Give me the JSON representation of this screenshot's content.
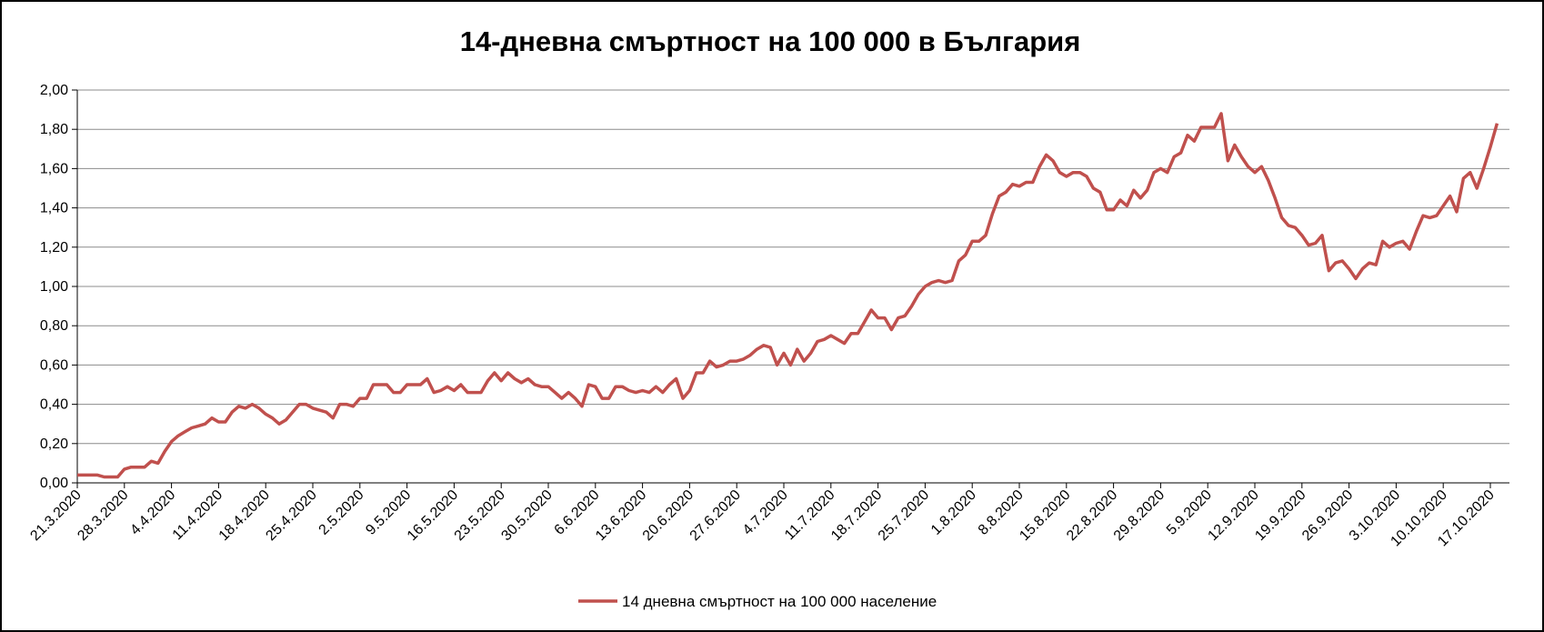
{
  "chart_data": {
    "type": "line",
    "title": "14-дневна смъртност на 100 000 в България",
    "xlabel": "",
    "ylabel": "",
    "ylim": [
      0,
      2
    ],
    "yticks": [
      "0,00",
      "0,20",
      "0,40",
      "0,60",
      "0,80",
      "1,00",
      "1,20",
      "1,40",
      "1,60",
      "1,80",
      "2,00"
    ],
    "ytick_values": [
      0,
      0.2,
      0.4,
      0.6,
      0.8,
      1.0,
      1.2,
      1.4,
      1.6,
      1.8,
      2.0
    ],
    "x_tick_labels": [
      "21.3.2020",
      "28.3.2020",
      "4.4.2020",
      "11.4.2020",
      "18.4.2020",
      "25.4.2020",
      "2.5.2020",
      "9.5.2020",
      "16.5.2020",
      "23.5.2020",
      "30.5.2020",
      "6.6.2020",
      "13.6.2020",
      "20.6.2020",
      "27.6.2020",
      "4.7.2020",
      "11.7.2020",
      "18.7.2020",
      "25.7.2020",
      "1.8.2020",
      "8.8.2020",
      "15.8.2020",
      "22.8.2020",
      "29.8.2020",
      "5.9.2020",
      "12.9.2020",
      "19.9.2020",
      "26.9.2020",
      "3.10.2020",
      "10.10.2020",
      "17.10.2020"
    ],
    "grid": true,
    "legend_position": "bottom",
    "series": [
      {
        "name": "14 дневна смъртност на 100 000 население",
        "color": "#c0504d",
        "x_start": "21.3.2020",
        "values": [
          0.04,
          0.04,
          0.04,
          0.04,
          0.03,
          0.03,
          0.03,
          0.07,
          0.08,
          0.08,
          0.08,
          0.11,
          0.1,
          0.16,
          0.21,
          0.24,
          0.26,
          0.28,
          0.29,
          0.3,
          0.33,
          0.31,
          0.31,
          0.36,
          0.39,
          0.38,
          0.4,
          0.38,
          0.35,
          0.33,
          0.3,
          0.32,
          0.36,
          0.4,
          0.4,
          0.38,
          0.37,
          0.36,
          0.33,
          0.4,
          0.4,
          0.39,
          0.43,
          0.43,
          0.5,
          0.5,
          0.5,
          0.46,
          0.46,
          0.5,
          0.5,
          0.5,
          0.53,
          0.46,
          0.47,
          0.49,
          0.47,
          0.5,
          0.46,
          0.46,
          0.46,
          0.52,
          0.56,
          0.52,
          0.56,
          0.53,
          0.51,
          0.53,
          0.5,
          0.49,
          0.49,
          0.46,
          0.43,
          0.46,
          0.43,
          0.39,
          0.5,
          0.49,
          0.43,
          0.43,
          0.49,
          0.49,
          0.47,
          0.46,
          0.47,
          0.46,
          0.49,
          0.46,
          0.5,
          0.53,
          0.43,
          0.47,
          0.56,
          0.56,
          0.62,
          0.59,
          0.6,
          0.62,
          0.62,
          0.63,
          0.65,
          0.68,
          0.7,
          0.69,
          0.6,
          0.66,
          0.6,
          0.68,
          0.62,
          0.66,
          0.72,
          0.73,
          0.75,
          0.73,
          0.71,
          0.76,
          0.76,
          0.82,
          0.88,
          0.84,
          0.84,
          0.78,
          0.84,
          0.85,
          0.9,
          0.96,
          1.0,
          1.02,
          1.03,
          1.02,
          1.03,
          1.13,
          1.16,
          1.23,
          1.23,
          1.26,
          1.37,
          1.46,
          1.48,
          1.52,
          1.51,
          1.53,
          1.53,
          1.61,
          1.67,
          1.64,
          1.58,
          1.56,
          1.58,
          1.58,
          1.56,
          1.5,
          1.48,
          1.39,
          1.39,
          1.44,
          1.41,
          1.49,
          1.45,
          1.49,
          1.58,
          1.6,
          1.58,
          1.66,
          1.68,
          1.77,
          1.74,
          1.81,
          1.81,
          1.81,
          1.88,
          1.64,
          1.72,
          1.66,
          1.61,
          1.58,
          1.61,
          1.54,
          1.45,
          1.35,
          1.31,
          1.3,
          1.26,
          1.21,
          1.22,
          1.26,
          1.08,
          1.12,
          1.13,
          1.09,
          1.04,
          1.09,
          1.12,
          1.11,
          1.23,
          1.2,
          1.22,
          1.23,
          1.19,
          1.28,
          1.36,
          1.35,
          1.36,
          1.41,
          1.46,
          1.38,
          1.55,
          1.58,
          1.5,
          1.6,
          1.71,
          1.83
        ]
      }
    ]
  }
}
